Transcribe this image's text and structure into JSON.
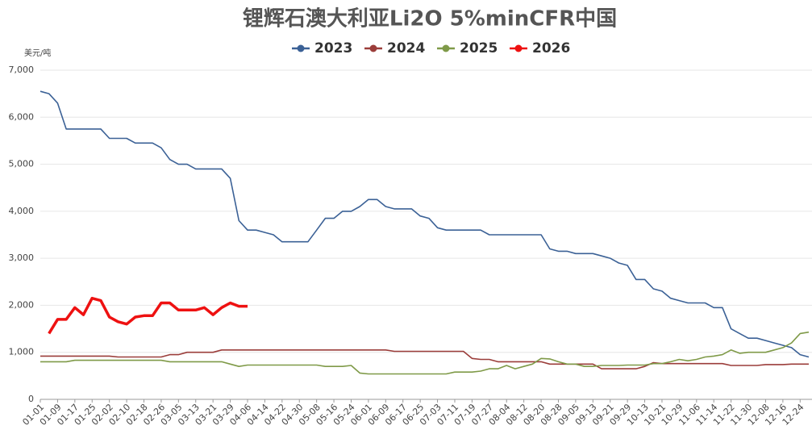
{
  "chart_data": {
    "type": "line",
    "title": "锂辉石澳大利亚Li2O 5%minCFR中国",
    "y_label": "美元/吨",
    "categories": [
      "01-01",
      null,
      "01-09",
      null,
      "01-17",
      null,
      "01-25",
      null,
      "02-02",
      null,
      "02-10",
      null,
      "02-18",
      null,
      "02-26",
      null,
      "03-05",
      null,
      "03-13",
      null,
      "03-21",
      null,
      "03-29",
      null,
      "04-06",
      null,
      "04-14",
      null,
      "04-22",
      null,
      "04-30",
      null,
      "05-08",
      null,
      "05-16",
      null,
      "05-24",
      null,
      "06-01",
      null,
      "06-09",
      null,
      "06-17",
      null,
      "06-25",
      null,
      "07-03",
      null,
      "07-11",
      null,
      "07-19",
      null,
      "07-27",
      null,
      "08-04",
      null,
      "08-12",
      null,
      "08-20",
      null,
      "08-28",
      null,
      "09-05",
      null,
      "09-13",
      null,
      "09-21",
      null,
      "09-29",
      null,
      "10-13",
      null,
      "10-21",
      null,
      "10-29",
      null,
      "11-06",
      null,
      "11-14",
      null,
      "11-22",
      null,
      "11-30",
      null,
      "12-08",
      null,
      "12-16",
      null,
      "12-24",
      null
    ],
    "series": [
      {
        "name": "2023",
        "color": "#3b6196",
        "values": [
          6550,
          6500,
          6300,
          5750,
          5750,
          5750,
          5750,
          5750,
          5550,
          5550,
          5550,
          5450,
          5450,
          5450,
          5350,
          5100,
          5000,
          5000,
          4900,
          4900,
          4900,
          4900,
          4700,
          3800,
          3600,
          3600,
          3550,
          3500,
          3350,
          3350,
          3350,
          3350,
          3600,
          3850,
          3850,
          4000,
          4000,
          4100,
          4250,
          4250,
          4100,
          4050,
          4050,
          4050,
          3900,
          3850,
          3650,
          3600,
          3600,
          3600,
          3600,
          3600,
          3500,
          3500,
          3500,
          3500,
          3500,
          3500,
          3500,
          3200,
          3150,
          3150,
          3100,
          3100,
          3100,
          3050,
          3000,
          2900,
          2850,
          2550,
          2550,
          2350,
          2300,
          2150,
          2100,
          2050,
          2050,
          2050,
          1950,
          1950,
          1500,
          1400,
          1300,
          1300,
          1250,
          1200,
          1150,
          1100,
          950,
          900
        ]
      },
      {
        "name": "2024",
        "color": "#9b3d3a",
        "values": [
          920,
          920,
          920,
          920,
          920,
          920,
          920,
          920,
          920,
          900,
          900,
          900,
          900,
          900,
          900,
          950,
          950,
          1000,
          1000,
          1000,
          1000,
          1050,
          1050,
          1050,
          1050,
          1050,
          1050,
          1050,
          1050,
          1050,
          1050,
          1050,
          1050,
          1050,
          1050,
          1050,
          1050,
          1050,
          1050,
          1050,
          1050,
          1020,
          1020,
          1020,
          1020,
          1020,
          1020,
          1020,
          1020,
          1020,
          870,
          850,
          850,
          800,
          800,
          800,
          800,
          800,
          800,
          750,
          750,
          750,
          750,
          750,
          750,
          650,
          650,
          650,
          650,
          650,
          700,
          780,
          760,
          760,
          760,
          760,
          760,
          760,
          760,
          760,
          720,
          720,
          720,
          720,
          740,
          740,
          740,
          750,
          750,
          750
        ]
      },
      {
        "name": "2025",
        "color": "#7f9a48",
        "values": [
          800,
          800,
          800,
          800,
          830,
          830,
          830,
          830,
          830,
          830,
          830,
          830,
          830,
          830,
          830,
          800,
          800,
          800,
          800,
          800,
          800,
          800,
          750,
          700,
          730,
          730,
          730,
          730,
          730,
          730,
          730,
          730,
          730,
          700,
          700,
          700,
          720,
          560,
          540,
          540,
          540,
          540,
          540,
          540,
          540,
          540,
          540,
          540,
          580,
          580,
          580,
          600,
          650,
          650,
          720,
          650,
          700,
          750,
          870,
          860,
          800,
          750,
          750,
          700,
          700,
          720,
          720,
          720,
          730,
          730,
          730,
          760,
          760,
          800,
          850,
          820,
          850,
          900,
          920,
          950,
          1050,
          980,
          1000,
          1000,
          1000,
          1050,
          1100,
          1200,
          1400,
          1430
        ]
      },
      {
        "name": "2026",
        "color": "#ee1111",
        "values": [
          null,
          1400,
          1700,
          1700,
          1950,
          1800,
          2150,
          2100,
          1750,
          1650,
          1600,
          1750,
          1780,
          1780,
          2050,
          2050,
          1900,
          1900,
          1900,
          1950,
          1800,
          1950,
          2050,
          1980,
          1980,
          null,
          null,
          null,
          null,
          null,
          null,
          null,
          null,
          null,
          null,
          null,
          null,
          null,
          null,
          null,
          null,
          null,
          null,
          null,
          null,
          null,
          null,
          null,
          null,
          null,
          null,
          null,
          null,
          null,
          null,
          null,
          null,
          null,
          null,
          null,
          null,
          null,
          null,
          null,
          null,
          null,
          null,
          null,
          null,
          null,
          null,
          null,
          null,
          null,
          null,
          null,
          null,
          null,
          null,
          null,
          null,
          null,
          null,
          null,
          null,
          null,
          null,
          null,
          null,
          null
        ]
      }
    ],
    "ylim": [
      0,
      7000
    ],
    "yticks": [
      0,
      {
        "value": 1000,
        "label": "1,000"
      },
      {
        "value": 2000,
        "label": "2,000"
      },
      {
        "value": 3000,
        "label": "3,000"
      },
      {
        "value": 4000,
        "label": "4,000"
      },
      {
        "value": 5000,
        "label": "5,000"
      },
      {
        "value": 6000,
        "label": "6,000"
      },
      {
        "value": 7000,
        "label": "7,000"
      }
    ],
    "grid": true,
    "legend": "top"
  }
}
